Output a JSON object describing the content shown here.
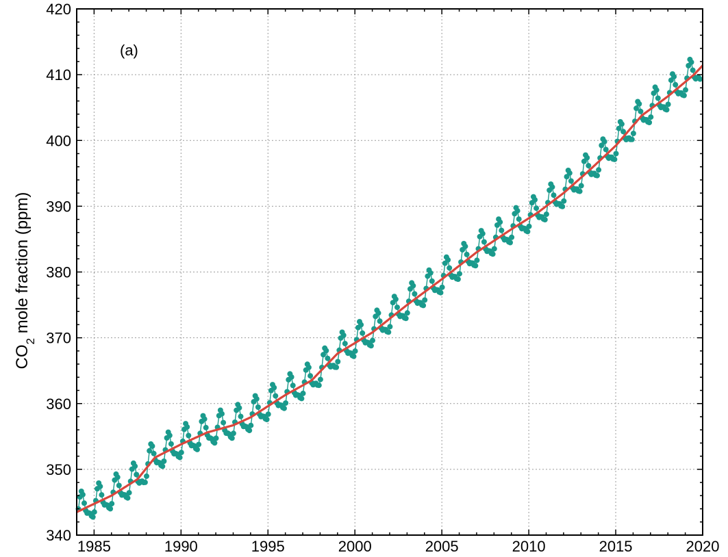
{
  "chart_data": {
    "type": "line",
    "ylabel": "CO₂ mole fraction (ppm)",
    "ylabel_parts": {
      "pre": "CO",
      "sub": "2",
      "post": " mole fraction (ppm)"
    },
    "annotation": "(a)",
    "xlim": [
      1984.0,
      2020.0
    ],
    "ylim": [
      340,
      420
    ],
    "x_ticks": [
      1985,
      1990,
      1995,
      2000,
      2005,
      2010,
      2015,
      2020
    ],
    "y_ticks": [
      340,
      350,
      360,
      370,
      380,
      390,
      400,
      410,
      420
    ],
    "grid": true,
    "colors": {
      "monthly": "#1a9a8c",
      "trend": "#d9463c"
    },
    "series": [
      {
        "kind": "monthly-points",
        "seasonal_amplitude_ppm": 2.4,
        "x_range": [
          1984.1,
          2019.9
        ],
        "points_per_year": 12
      },
      {
        "kind": "trend-line",
        "x": [
          1984.0,
          1986.0,
          1987.5,
          1988.5,
          1990.0,
          1991.5,
          1993.0,
          1994.0,
          1996.0,
          1997.5,
          1999.0,
          2001.0,
          2003.0,
          2005.0,
          2007.0,
          2009.0,
          2010.5,
          2012.0,
          2013.5,
          2015.0,
          2016.5,
          2018.0,
          2019.5,
          2020.0
        ],
        "y": [
          343.5,
          346.0,
          348.5,
          351.8,
          353.8,
          355.6,
          356.7,
          357.9,
          361.3,
          363.5,
          367.6,
          370.8,
          375.0,
          378.9,
          383.0,
          386.5,
          389.0,
          392.0,
          395.5,
          399.2,
          403.8,
          406.7,
          410.0,
          411.4
        ]
      }
    ]
  }
}
